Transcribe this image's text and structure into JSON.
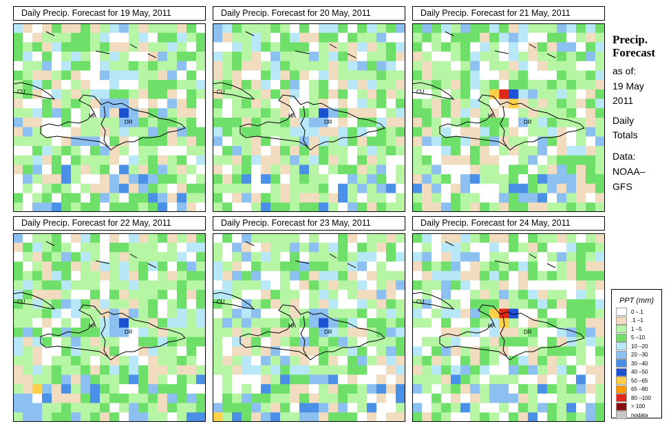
{
  "panels": [
    {
      "title": "Daily Precip. Forecast for  19 May, 2011",
      "seed": 11,
      "hot": []
    },
    {
      "title": "Daily Precip. Forecast for  20 May, 2011",
      "seed": 23,
      "hot": []
    },
    {
      "title": "Daily Precip. Forecast for  21 May, 2011",
      "seed": 37,
      "hot": [
        [
          7,
          9,
          "#e0281a"
        ],
        [
          7,
          8,
          "#ffd04a"
        ],
        [
          7,
          10,
          "#2050d8"
        ],
        [
          8,
          10,
          "#ffd04a"
        ]
      ]
    },
    {
      "title": "Daily Precip. Forecast for  22 May, 2011",
      "seed": 41,
      "hot": [
        [
          16,
          2,
          "#ffd04a"
        ]
      ]
    },
    {
      "title": "Daily Precip. Forecast for  23 May, 2011",
      "seed": 53,
      "hot": [
        [
          19,
          0,
          "#ffd04a"
        ]
      ]
    },
    {
      "title": "Daily Precip. Forecast for  24 May, 2011",
      "seed": 67,
      "hot": [
        [
          8,
          9,
          "#e0281a"
        ],
        [
          8,
          8,
          "#ffd04a"
        ],
        [
          9,
          9,
          "#ffd04a"
        ],
        [
          8,
          10,
          "#2050d8"
        ]
      ]
    }
  ],
  "map_labels": {
    "cu": "CU",
    "ha": "HA",
    "dr": "DR"
  },
  "sidebar": {
    "line1": "Precip.",
    "line2": "Forecast",
    "asof": "as of:",
    "date1": "19 May",
    "date2": "2011",
    "daily1": "Daily",
    "daily2": "Totals",
    "data1": "Data:",
    "data2": "NOAA–",
    "data3": "GFS"
  },
  "legend": {
    "title": "PPT (mm)",
    "items": [
      {
        "label": "0 –.1",
        "color": "#ffffff"
      },
      {
        "label": ".1 –1",
        "color": "#f2dcbf"
      },
      {
        "label": "1 –5",
        "color": "#b6f5a4"
      },
      {
        "label": "5 –10",
        "color": "#6ee06a"
      },
      {
        "label": "10 –20",
        "color": "#b8e8f8"
      },
      {
        "label": "20 –30",
        "color": "#8cc0f0"
      },
      {
        "label": "30 –40",
        "color": "#4a90e6"
      },
      {
        "label": "40 –50",
        "color": "#1a52d2"
      },
      {
        "label": "50 –65",
        "color": "#ffd04a"
      },
      {
        "label": "65 –80",
        "color": "#ff9a00"
      },
      {
        "label": "80 –100",
        "color": "#e0281a"
      },
      {
        "label": "> 100",
        "color": "#8a1010"
      },
      {
        "label": "nodata",
        "color": "#c8c8c8"
      }
    ]
  }
}
